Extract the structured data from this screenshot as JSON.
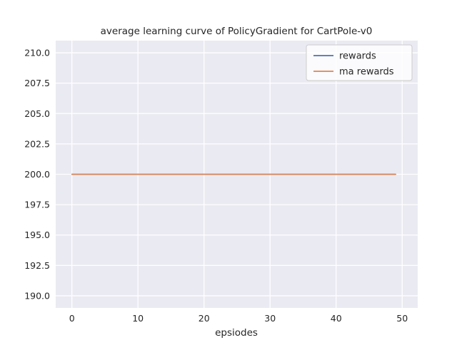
{
  "chart_data": {
    "type": "line",
    "title": "average learning curve of PolicyGradient for CartPole-v0",
    "xlabel": "epsiodes",
    "ylabel": "",
    "x": [
      0,
      1,
      2,
      3,
      4,
      5,
      6,
      7,
      8,
      9,
      10,
      11,
      12,
      13,
      14,
      15,
      16,
      17,
      18,
      19,
      20,
      21,
      22,
      23,
      24,
      25,
      26,
      27,
      28,
      29,
      30,
      31,
      32,
      33,
      34,
      35,
      36,
      37,
      38,
      39,
      40,
      41,
      42,
      43,
      44,
      45,
      46,
      47,
      48,
      49
    ],
    "series": [
      {
        "name": "rewards",
        "color": "#4c72b0",
        "values": [
          200,
          200,
          200,
          200,
          200,
          200,
          200,
          200,
          200,
          200,
          200,
          200,
          200,
          200,
          200,
          200,
          200,
          200,
          200,
          200,
          200,
          200,
          200,
          200,
          200,
          200,
          200,
          200,
          200,
          200,
          200,
          200,
          200,
          200,
          200,
          200,
          200,
          200,
          200,
          200,
          200,
          200,
          200,
          200,
          200,
          200,
          200,
          200,
          200,
          200
        ]
      },
      {
        "name": "ma rewards",
        "color": "#dd8452",
        "values": [
          200,
          200,
          200,
          200,
          200,
          200,
          200,
          200,
          200,
          200,
          200,
          200,
          200,
          200,
          200,
          200,
          200,
          200,
          200,
          200,
          200,
          200,
          200,
          200,
          200,
          200,
          200,
          200,
          200,
          200,
          200,
          200,
          200,
          200,
          200,
          200,
          200,
          200,
          200,
          200,
          200,
          200,
          200,
          200,
          200,
          200,
          200,
          200,
          200,
          200
        ]
      }
    ],
    "xlim": [
      -2.45,
      52.35
    ],
    "ylim": [
      189.0,
      211.0
    ],
    "xticks": [
      0,
      10,
      20,
      30,
      40,
      50
    ],
    "yticks": [
      190.0,
      192.5,
      195.0,
      197.5,
      200.0,
      202.5,
      205.0,
      207.5,
      210.0
    ],
    "grid": true,
    "legend_position": "upper right",
    "plot_bg": "#eaeaf2",
    "grid_color": "#ffffff",
    "text_color": "#262626"
  }
}
